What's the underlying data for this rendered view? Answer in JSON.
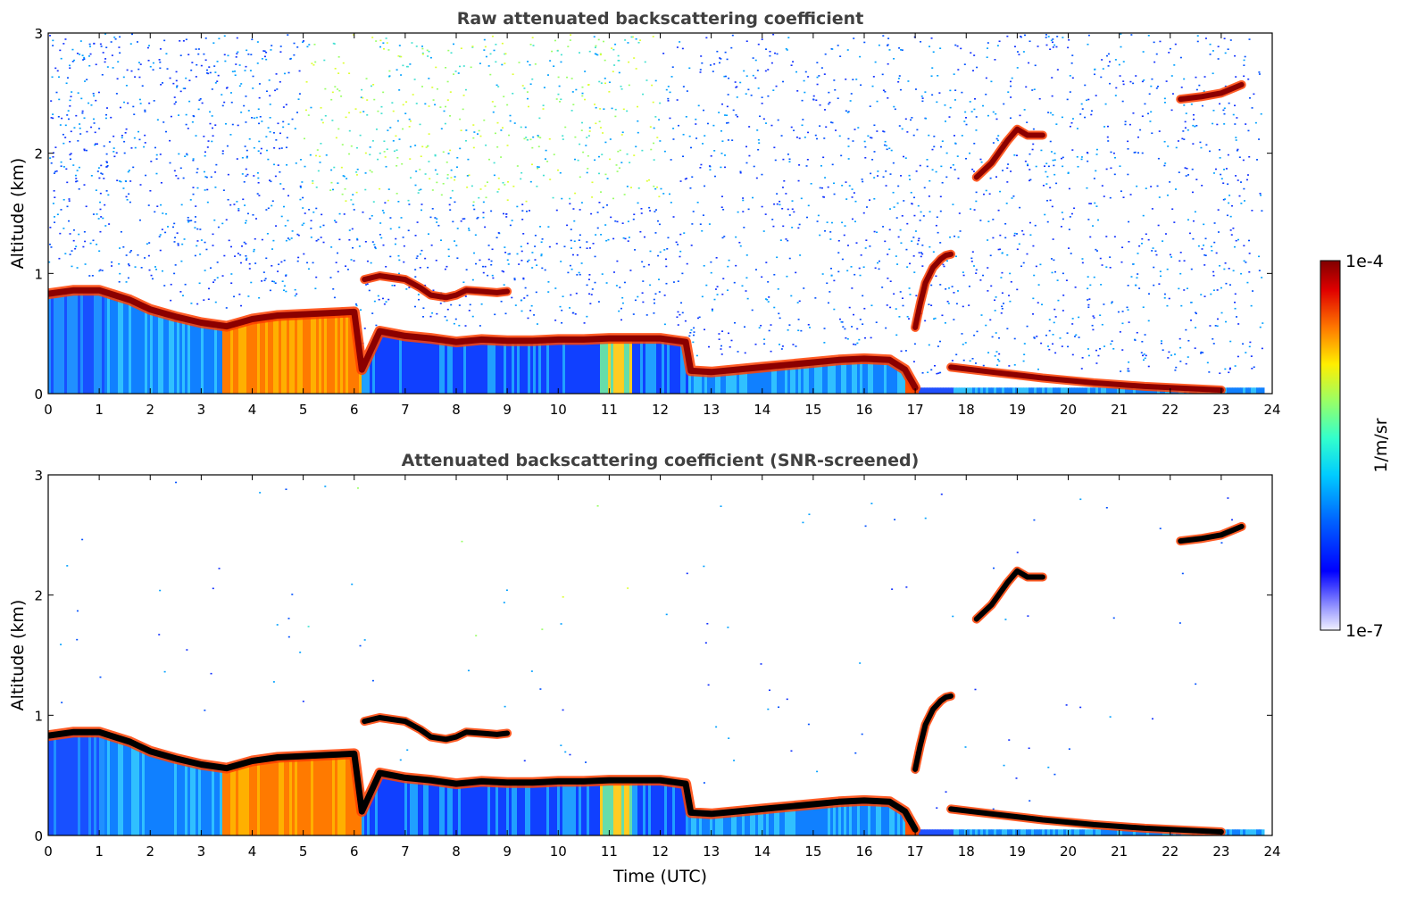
{
  "chart_data": [
    {
      "type": "heatmap",
      "title": "Raw attenuated backscattering coefficient",
      "xlabel": "",
      "ylabel": "Altitude (km)",
      "xlim": [
        0,
        24
      ],
      "ylim": [
        0,
        3
      ],
      "xticks": [
        0,
        1,
        2,
        3,
        4,
        5,
        6,
        7,
        8,
        9,
        10,
        11,
        12,
        13,
        14,
        15,
        16,
        17,
        18,
        19,
        20,
        21,
        22,
        23,
        24
      ],
      "yticks": [
        0,
        1,
        2,
        3
      ],
      "layers": [
        {
          "name": "boundary-layer-top",
          "x": [
            0,
            0.5,
            1.0,
            1.3,
            1.6,
            2.0,
            2.5,
            3.0,
            3.5,
            4.0,
            4.5,
            5.0,
            5.5,
            6.0,
            6.15,
            6.5,
            7.0,
            7.5,
            8.0,
            8.5,
            9.0,
            9.5,
            10.0,
            10.5,
            11.0,
            11.5,
            12.0,
            12.5,
            12.6,
            13.0,
            13.5,
            14.0,
            14.5,
            15.0,
            15.5,
            16.0,
            16.5,
            16.8,
            17.0
          ],
          "y": [
            0.83,
            0.86,
            0.86,
            0.82,
            0.78,
            0.7,
            0.64,
            0.59,
            0.56,
            0.62,
            0.65,
            0.66,
            0.67,
            0.68,
            0.2,
            0.52,
            0.48,
            0.46,
            0.43,
            0.45,
            0.44,
            0.44,
            0.45,
            0.45,
            0.46,
            0.46,
            0.46,
            0.43,
            0.19,
            0.18,
            0.2,
            0.22,
            0.24,
            0.26,
            0.28,
            0.29,
            0.28,
            0.2,
            0.05
          ]
        },
        {
          "name": "elevated-layer",
          "x": [
            6.2,
            6.5,
            7.0,
            7.3,
            7.5,
            7.8,
            8.0,
            8.2,
            8.5,
            8.8,
            9.0
          ],
          "y": [
            0.95,
            0.98,
            0.95,
            0.88,
            0.82,
            0.8,
            0.82,
            0.86,
            0.85,
            0.84,
            0.85
          ]
        },
        {
          "name": "rising-plume",
          "x": [
            17.0,
            17.1,
            17.2,
            17.35,
            17.5,
            17.6,
            17.7
          ],
          "y": [
            0.55,
            0.75,
            0.92,
            1.05,
            1.12,
            1.15,
            1.16
          ]
        },
        {
          "name": "residual-layer",
          "x": [
            17.7,
            18.5,
            19.5,
            20.5,
            21.5,
            22.5,
            23.0
          ],
          "y": [
            0.22,
            0.18,
            0.13,
            0.09,
            0.06,
            0.04,
            0.03
          ]
        },
        {
          "name": "cloud-1",
          "x": [
            18.2,
            18.5,
            18.8,
            19.0,
            19.2,
            19.5
          ],
          "y": [
            1.8,
            1.92,
            2.1,
            2.2,
            2.15,
            2.15
          ]
        },
        {
          "name": "cloud-2",
          "x": [
            22.2,
            22.6,
            23.0,
            23.4
          ],
          "y": [
            2.45,
            2.47,
            2.5,
            2.57
          ]
        }
      ]
    },
    {
      "type": "heatmap",
      "title": "Attenuated backscattering coefficient (SNR-screened)",
      "xlabel": "Time (UTC)",
      "ylabel": "Altitude (km)",
      "xlim": [
        0,
        24
      ],
      "ylim": [
        0,
        3
      ],
      "xticks": [
        0,
        1,
        2,
        3,
        4,
        5,
        6,
        7,
        8,
        9,
        10,
        11,
        12,
        13,
        14,
        15,
        16,
        17,
        18,
        19,
        20,
        21,
        22,
        23,
        24
      ],
      "yticks": [
        0,
        1,
        2,
        3
      ]
    }
  ],
  "colorbar": {
    "label": "1/m/sr",
    "max_label": "1e-4",
    "min_label": "1e-7",
    "colormap": "jet",
    "scale": "log"
  },
  "colors": {
    "layer_peak": "#8b0000",
    "screened_peak": "#000000",
    "low_signal": "#0000ff",
    "title": "#404040"
  }
}
